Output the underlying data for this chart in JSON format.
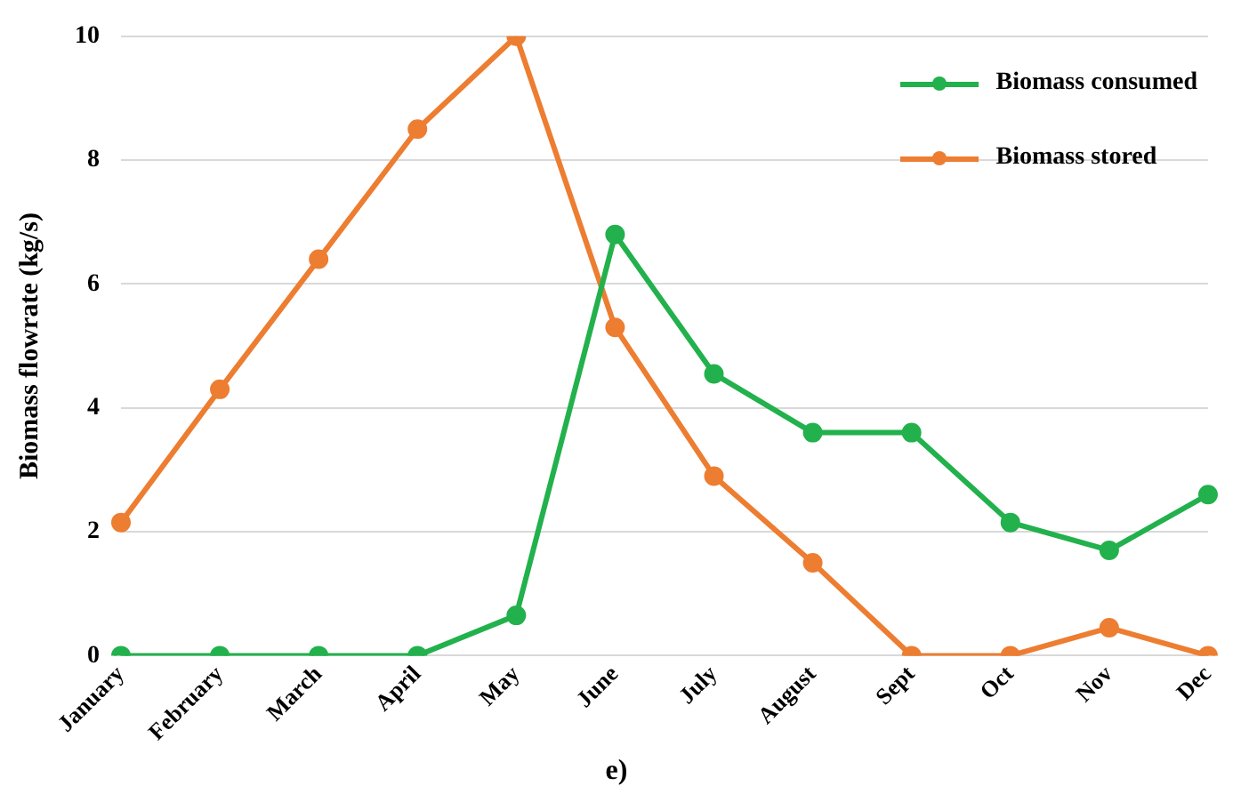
{
  "chart_data": {
    "type": "line",
    "ylabel": "Biomass flowrate (kg/s)",
    "categories": [
      "January",
      "February",
      "March",
      "April",
      "May",
      "June",
      "July",
      "August",
      "Sept",
      "Oct",
      "Nov",
      "Dec"
    ],
    "series": [
      {
        "name": "Biomass consumed",
        "color": "#22b14c",
        "values": [
          0,
          0,
          0,
          0,
          0.65,
          6.8,
          4.55,
          3.6,
          3.6,
          2.15,
          1.7,
          2.6
        ]
      },
      {
        "name": "Biomass stored",
        "color": "#ed7d31",
        "values": [
          2.15,
          4.3,
          6.4,
          8.5,
          10,
          5.3,
          2.9,
          1.5,
          0,
          0,
          0.45,
          0
        ]
      }
    ],
    "ylim": [
      0,
      10
    ],
    "yticks": [
      0,
      2,
      4,
      6,
      8,
      10
    ],
    "grid": "y",
    "legend": "top right",
    "marker": "circle",
    "line_style": "solid",
    "annotations": [
      "e)"
    ]
  }
}
